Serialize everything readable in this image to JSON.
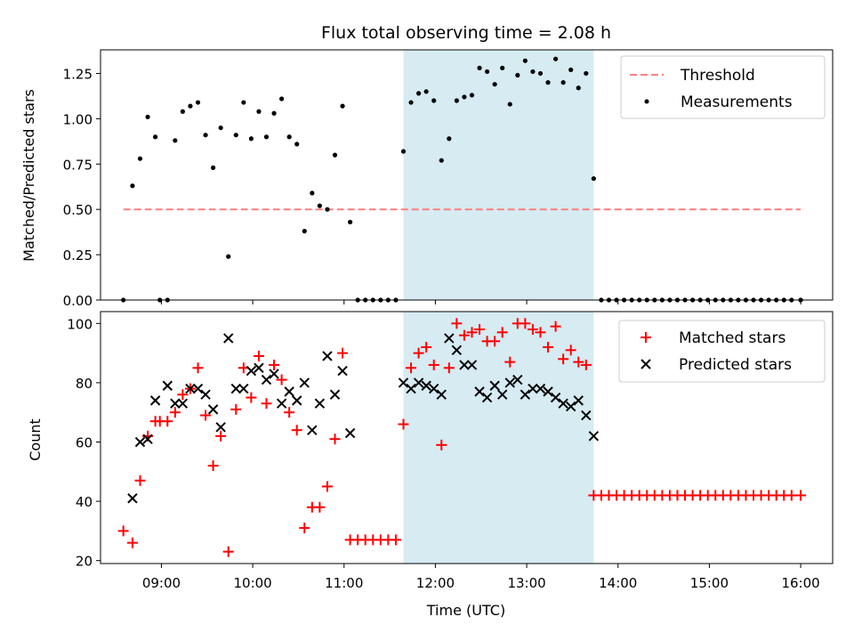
{
  "chart_data": [
    {
      "type": "scatter",
      "title": "Flux total observing time = 2.08 h",
      "xlabel": "",
      "ylabel": "Matched/Predicted stars",
      "xlim": [
        "08:20",
        "16:21"
      ],
      "ylim": [
        0,
        1.38
      ],
      "yticks": [
        0,
        0.25,
        0.5,
        0.75,
        1.0,
        1.25
      ],
      "ytick_labels": [
        "0.00",
        "0.25",
        "0.50",
        "0.75",
        "1.00",
        "1.25"
      ],
      "highlight_span": [
        "11:39",
        "13:44"
      ],
      "legend": {
        "position": "top-right"
      },
      "series": [
        {
          "name": "Threshold",
          "type": "line",
          "style": "dashed",
          "color": "#ff7f7f",
          "x": [
            "08:35",
            "16:00"
          ],
          "y": [
            0.5,
            0.5
          ]
        },
        {
          "name": "Measurements",
          "type": "scatter",
          "color": "#000000",
          "x": [
            "08:35",
            "08:41",
            "08:46",
            "08:51",
            "08:56",
            "08:59",
            "09:04",
            "09:09",
            "09:14",
            "09:19",
            "09:24",
            "09:29",
            "09:34",
            "09:39",
            "09:44",
            "09:49",
            "09:54",
            "09:59",
            "10:04",
            "10:09",
            "10:14",
            "10:19",
            "10:24",
            "10:29",
            "10:34",
            "10:39",
            "10:44",
            "10:49",
            "10:54",
            "10:59",
            "11:04",
            "11:09",
            "11:14",
            "11:19",
            "11:24",
            "11:29",
            "11:34",
            "11:39",
            "11:44",
            "11:49",
            "11:54",
            "11:59",
            "12:04",
            "12:09",
            "12:14",
            "12:19",
            "12:24",
            "12:29",
            "12:34",
            "12:39",
            "12:44",
            "12:49",
            "12:54",
            "12:59",
            "13:04",
            "13:09",
            "13:14",
            "13:19",
            "13:24",
            "13:29",
            "13:34",
            "13:39",
            "13:44",
            "13:49",
            "13:54",
            "13:59",
            "14:04",
            "14:09",
            "14:14",
            "14:19",
            "14:24",
            "14:29",
            "14:34",
            "14:39",
            "14:44",
            "14:49",
            "14:54",
            "14:59",
            "15:04",
            "15:09",
            "15:14",
            "15:19",
            "15:24",
            "15:29",
            "15:34",
            "15:39",
            "15:44",
            "15:49",
            "15:54",
            "16:00"
          ],
          "y": [
            0.0,
            0.63,
            0.78,
            1.01,
            0.9,
            0.0,
            0.0,
            0.88,
            1.04,
            1.07,
            1.09,
            0.91,
            0.73,
            0.95,
            0.24,
            0.91,
            1.09,
            0.89,
            1.04,
            0.9,
            1.03,
            1.11,
            0.9,
            0.86,
            0.38,
            0.59,
            0.52,
            0.5,
            0.8,
            1.07,
            0.43,
            0.0,
            0.0,
            0.0,
            0.0,
            0.0,
            0.0,
            0.82,
            1.09,
            1.14,
            1.15,
            1.1,
            0.77,
            0.89,
            1.1,
            1.12,
            1.13,
            1.28,
            1.26,
            1.19,
            1.28,
            1.08,
            1.24,
            1.32,
            1.26,
            1.25,
            1.2,
            1.33,
            1.2,
            1.27,
            1.17,
            1.25,
            0.67,
            0.0,
            0.0,
            0.0,
            0.0,
            0.0,
            0.0,
            0.0,
            0.0,
            0.0,
            0.0,
            0.0,
            0.0,
            0.0,
            0.0,
            0.0,
            0.0,
            0.0,
            0.0,
            0.0,
            0.0,
            0.0,
            0.0,
            0.0,
            0.0,
            0.0,
            0.0,
            0.0
          ]
        }
      ]
    },
    {
      "type": "scatter",
      "title": "",
      "xlabel": "Time (UTC)",
      "ylabel": "Count",
      "xlim": [
        "08:20",
        "16:21"
      ],
      "ylim": [
        19,
        104
      ],
      "xticks": [
        "09:00",
        "10:00",
        "11:00",
        "12:00",
        "13:00",
        "14:00",
        "15:00",
        "16:00"
      ],
      "yticks": [
        20,
        40,
        60,
        80,
        100
      ],
      "ytick_labels": [
        "20",
        "40",
        "60",
        "80",
        "100"
      ],
      "highlight_span": [
        "11:39",
        "13:44"
      ],
      "legend": {
        "position": "top-right"
      },
      "series": [
        {
          "name": "Matched stars",
          "type": "scatter",
          "marker": "plus",
          "color": "#ff0000",
          "x": [
            "08:35",
            "08:41",
            "08:46",
            "08:51",
            "08:56",
            "08:59",
            "09:04",
            "09:09",
            "09:14",
            "09:19",
            "09:24",
            "09:29",
            "09:34",
            "09:39",
            "09:44",
            "09:49",
            "09:54",
            "09:59",
            "10:04",
            "10:09",
            "10:14",
            "10:19",
            "10:24",
            "10:29",
            "10:34",
            "10:39",
            "10:44",
            "10:49",
            "10:54",
            "10:59",
            "11:04",
            "11:09",
            "11:14",
            "11:19",
            "11:24",
            "11:29",
            "11:34",
            "11:39",
            "11:44",
            "11:49",
            "11:54",
            "11:59",
            "12:04",
            "12:09",
            "12:14",
            "12:19",
            "12:24",
            "12:29",
            "12:34",
            "12:39",
            "12:44",
            "12:49",
            "12:54",
            "12:59",
            "13:04",
            "13:09",
            "13:14",
            "13:19",
            "13:24",
            "13:29",
            "13:34",
            "13:39",
            "13:44",
            "13:49",
            "13:54",
            "13:59",
            "14:04",
            "14:09",
            "14:14",
            "14:19",
            "14:24",
            "14:29",
            "14:34",
            "14:39",
            "14:44",
            "14:49",
            "14:54",
            "14:59",
            "15:04",
            "15:09",
            "15:14",
            "15:19",
            "15:24",
            "15:29",
            "15:34",
            "15:39",
            "15:44",
            "15:49",
            "15:54",
            "16:00"
          ],
          "y": [
            30,
            26,
            47,
            62,
            67,
            67,
            67,
            70,
            76,
            78,
            85,
            69,
            52,
            62,
            23,
            71,
            85,
            75,
            89,
            73,
            86,
            81,
            70,
            64,
            31,
            38,
            38,
            45,
            61,
            90,
            27,
            27,
            27,
            27,
            27,
            27,
            27,
            66,
            85,
            90,
            92,
            86,
            59,
            85,
            100,
            96,
            97,
            98,
            94,
            94,
            97,
            87,
            100,
            100,
            98,
            97,
            92,
            99,
            88,
            91,
            87,
            86,
            42,
            42,
            42,
            42,
            42,
            42,
            42,
            42,
            42,
            42,
            42,
            42,
            42,
            42,
            42,
            42,
            42,
            42,
            42,
            42,
            42,
            42,
            42,
            42,
            42,
            42,
            42,
            42
          ]
        },
        {
          "name": "Predicted stars",
          "type": "scatter",
          "marker": "x",
          "color": "#000000",
          "x": [
            "08:41",
            "08:46",
            "08:51",
            "08:56",
            "09:04",
            "09:09",
            "09:14",
            "09:19",
            "09:24",
            "09:29",
            "09:34",
            "09:39",
            "09:44",
            "09:49",
            "09:54",
            "09:59",
            "10:04",
            "10:09",
            "10:14",
            "10:19",
            "10:24",
            "10:29",
            "10:34",
            "10:39",
            "10:44",
            "10:49",
            "10:54",
            "10:59",
            "11:04",
            "11:39",
            "11:44",
            "11:49",
            "11:54",
            "11:59",
            "12:04",
            "12:09",
            "12:14",
            "12:19",
            "12:24",
            "12:29",
            "12:34",
            "12:39",
            "12:44",
            "12:49",
            "12:54",
            "12:59",
            "13:04",
            "13:09",
            "13:14",
            "13:19",
            "13:24",
            "13:29",
            "13:34",
            "13:39",
            "13:44"
          ],
          "y": [
            41,
            60,
            61,
            74,
            79,
            73,
            73,
            78,
            78,
            76,
            71,
            65,
            95,
            78,
            78,
            84,
            85,
            81,
            83,
            73,
            77,
            74,
            80,
            64,
            73,
            89,
            76,
            84,
            63,
            80,
            78,
            80,
            79,
            78,
            76,
            95,
            91,
            86,
            86,
            77,
            75,
            79,
            76,
            80,
            81,
            76,
            78,
            78,
            77,
            75,
            73,
            72,
            74,
            69,
            62
          ]
        }
      ]
    }
  ]
}
